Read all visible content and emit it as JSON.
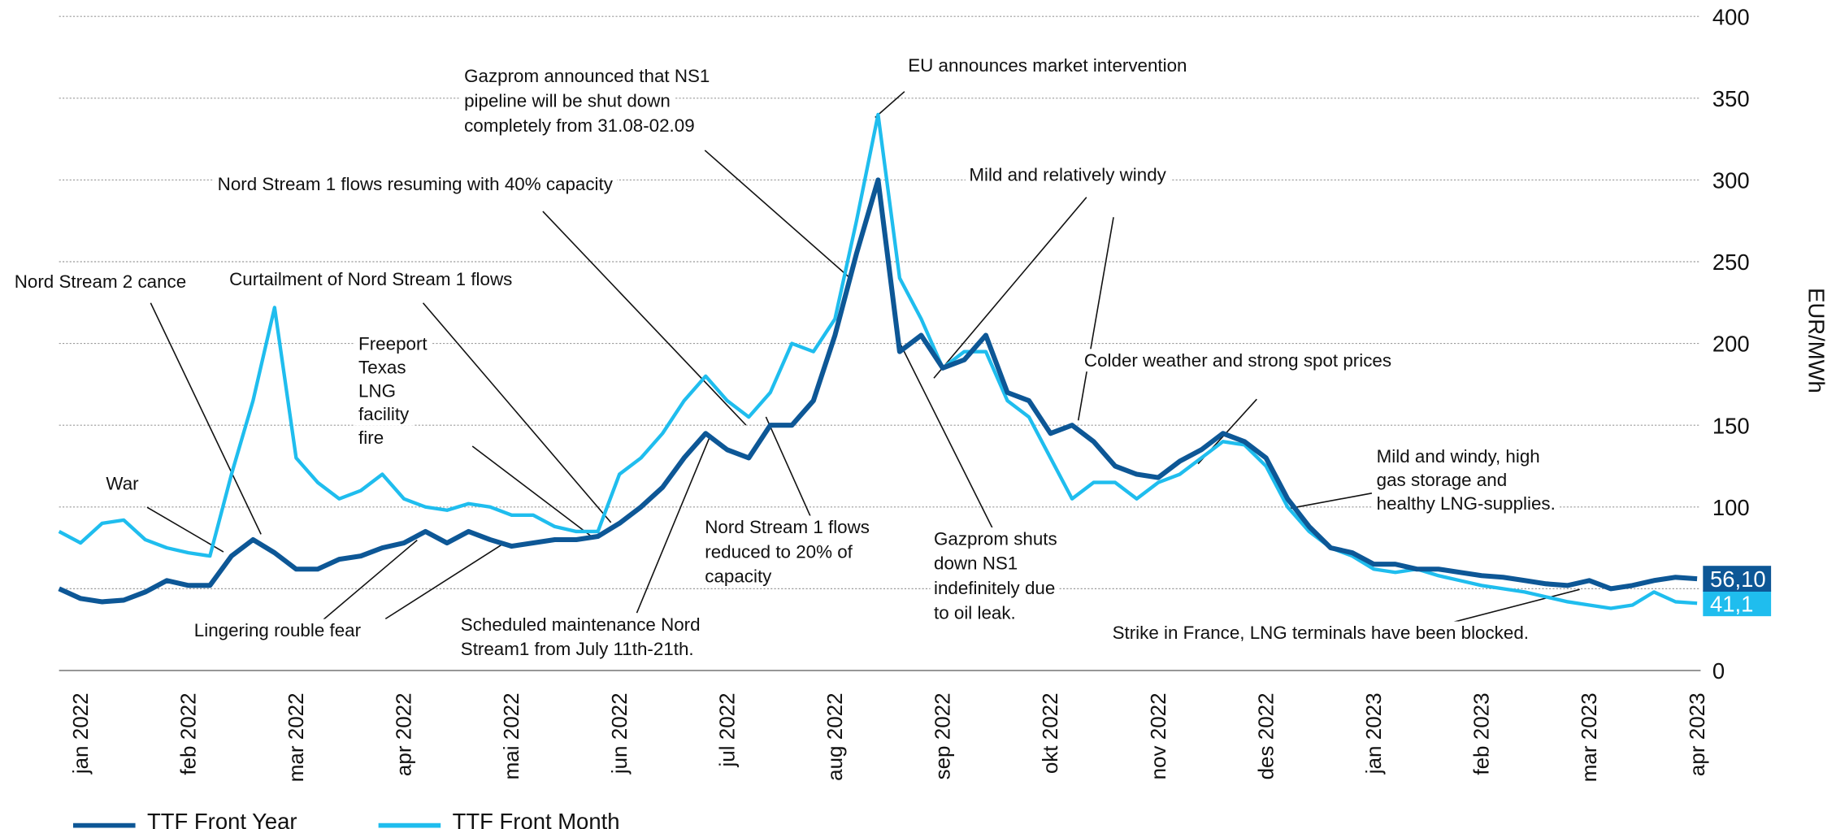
{
  "chart_data": {
    "type": "line",
    "y_label": "EUR/MWh",
    "ylim": [
      0,
      400
    ],
    "yticks": [
      0,
      50,
      100,
      150,
      200,
      250,
      300,
      350,
      400
    ],
    "grid": true,
    "y_axis_side": "right",
    "categories": [
      null,
      "jan 2022",
      null,
      null,
      null,
      null,
      "feb 2022",
      null,
      null,
      null,
      null,
      "mar 2022",
      null,
      null,
      null,
      null,
      "apr 2022",
      null,
      null,
      null,
      null,
      "mai 2022",
      null,
      null,
      null,
      null,
      "jun 2022",
      null,
      null,
      null,
      null,
      "jul 2022",
      null,
      null,
      null,
      null,
      "aug 2022",
      null,
      null,
      null,
      null,
      "sep 2022",
      null,
      null,
      null,
      null,
      "okt 2022",
      null,
      null,
      null,
      null,
      "nov 2022",
      null,
      null,
      null,
      null,
      "des 2022",
      null,
      null,
      null,
      null,
      "jan 2023",
      null,
      null,
      null,
      null,
      "feb 2023",
      null,
      null,
      null,
      null,
      "mar 2023",
      null,
      null,
      null,
      null,
      "apr 2023"
    ],
    "series": [
      {
        "name": "TTF  Front Month",
        "color": "#1fbdee",
        "end_label": "41,1",
        "values": [
          85,
          78,
          90,
          92,
          80,
          75,
          72,
          70,
          120,
          165,
          222,
          130,
          115,
          105,
          110,
          120,
          105,
          100,
          98,
          102,
          100,
          95,
          95,
          88,
          85,
          85,
          120,
          130,
          145,
          165,
          180,
          165,
          155,
          170,
          200,
          195,
          215,
          275,
          340,
          240,
          215,
          185,
          195,
          195,
          165,
          155,
          130,
          105,
          115,
          115,
          105,
          115,
          120,
          130,
          140,
          138,
          125,
          100,
          85,
          75,
          70,
          62,
          60,
          62,
          58,
          55,
          52,
          50,
          48,
          45,
          42,
          40,
          38,
          40,
          48,
          42,
          41.1
        ]
      },
      {
        "name": "TTF Front Year",
        "color": "#0d5796",
        "end_label": "56,10",
        "values": [
          50,
          44,
          42,
          43,
          48,
          55,
          52,
          52,
          70,
          80,
          72,
          62,
          62,
          68,
          70,
          75,
          78,
          85,
          78,
          85,
          80,
          76,
          78,
          80,
          80,
          82,
          90,
          100,
          112,
          130,
          145,
          135,
          130,
          150,
          150,
          165,
          205,
          255,
          300,
          195,
          205,
          185,
          190,
          205,
          170,
          165,
          145,
          150,
          140,
          125,
          120,
          118,
          128,
          135,
          145,
          140,
          130,
          105,
          88,
          75,
          72,
          65,
          65,
          62,
          62,
          60,
          58,
          57,
          55,
          53,
          52,
          55,
          50,
          52,
          55,
          57,
          56.1
        ]
      }
    ],
    "legend_order": [
      1,
      0
    ],
    "annotations": [
      {
        "lines": [
          "Nord Stream 2 cance"
        ]
      },
      {
        "lines": [
          "Curtailment of Nord Stream 1 flows"
        ]
      },
      {
        "lines": [
          "War"
        ]
      },
      {
        "lines": [
          "Freeport",
          "Texas",
          "LNG",
          "facility",
          "fire"
        ]
      },
      {
        "lines": [
          "Lingering rouble fear"
        ]
      },
      {
        "lines": [
          "Gazprom announced  that NS1",
          "pipeline will be shut down",
          "completely from 31.08-02.09"
        ]
      },
      {
        "lines": [
          "Nord Stream 1 flows resuming  with 40% capacity"
        ]
      },
      {
        "lines": [
          "EU announces market intervention"
        ]
      },
      {
        "lines": [
          "Mild and relatively windy"
        ]
      },
      {
        "lines": [
          "Colder weather and strong spot prices"
        ]
      },
      {
        "lines": [
          "Nord Stream 1 flows",
          "reduced to 20% of",
          "capacity"
        ]
      },
      {
        "lines": [
          "Scheduled maintenance Nord",
          "Stream1 from July 11th-21th."
        ]
      },
      {
        "lines": [
          "Gazprom shuts",
          "down NS1",
          "indefinitely due",
          "to oil leak."
        ]
      },
      {
        "lines": [
          "Mild and windy, high",
          "gas storage and",
          "healthy LNG-supplies."
        ]
      },
      {
        "lines": [
          "Strike in France, LNG terminals have been blocked."
        ]
      }
    ]
  }
}
